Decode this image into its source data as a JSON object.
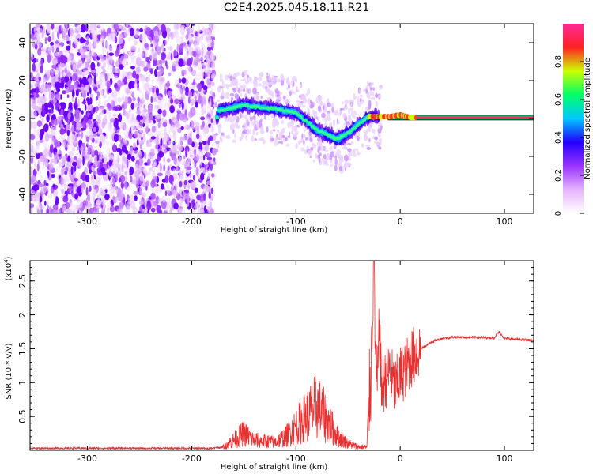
{
  "title": "C2E4.2025.045.18.11.R21",
  "chart_data": [
    {
      "type": "heatmap",
      "xlabel": "Height of straight line (km)",
      "ylabel": "Frequency (Hz)",
      "xlim": [
        -355,
        128
      ],
      "ylim": [
        -50,
        50
      ],
      "xticks": [
        -300,
        -200,
        -100,
        0,
        100
      ],
      "yticks": [
        -40,
        -20,
        0,
        20,
        40
      ],
      "colorbar": {
        "label": "Normalized spectral amplitude",
        "range": [
          0,
          1
        ],
        "ticks": [
          0.0,
          0.2,
          0.4,
          0.6,
          0.8
        ],
        "colors": [
          "#ffffff",
          "#e6b3ff",
          "#9933ff",
          "#2200ff",
          "#00c8ff",
          "#00ff66",
          "#ccff00",
          "#ff2222",
          "#ff2a99"
        ]
      },
      "features": {
        "noise_region_x": [
          -355,
          -178
        ],
        "track": [
          {
            "x": -175,
            "y": 4
          },
          {
            "x": -150,
            "y": 7
          },
          {
            "x": -120,
            "y": 5
          },
          {
            "x": -100,
            "y": 3
          },
          {
            "x": -80,
            "y": -6
          },
          {
            "x": -60,
            "y": -11
          },
          {
            "x": -48,
            "y": -7
          },
          {
            "x": -40,
            "y": -3
          },
          {
            "x": -30,
            "y": 1
          },
          {
            "x": -10,
            "y": 1
          },
          {
            "x": 0,
            "y": 2
          },
          {
            "x": 10,
            "y": 0.5
          },
          {
            "x": 128,
            "y": 0.5
          }
        ]
      }
    },
    {
      "type": "line",
      "xlabel": "Height of straight line (km)",
      "ylabel": "SNR (10 * v/v)",
      "yscale_label": "(x10",
      "yscale_exp": "4",
      "xlim": [
        -355,
        128
      ],
      "ylim": [
        0,
        2.8
      ],
      "xticks": [
        -300,
        -200,
        -100,
        0,
        100
      ],
      "yticks": [
        0.5,
        1.0,
        1.5,
        2.0,
        2.5
      ],
      "line_color": "#e83030",
      "series": [
        {
          "x": [
            -355,
            -250,
            -180,
            -170,
            -160,
            -150,
            -140,
            -120,
            -110,
            -100,
            -90,
            -80,
            -75,
            -70,
            -60,
            -50,
            -40,
            -32,
            -28,
            -25,
            -24,
            -22,
            -20,
            -18,
            -15,
            -10,
            -5,
            0,
            5,
            10,
            20,
            30,
            40,
            50,
            70,
            90,
            95,
            100,
            110,
            128
          ],
          "y": [
            0.03,
            0.03,
            0.03,
            0.05,
            0.15,
            0.25,
            0.15,
            0.12,
            0.2,
            0.35,
            0.5,
            0.65,
            0.55,
            0.45,
            0.2,
            0.1,
            0.05,
            0.05,
            1.3,
            2.8,
            1.5,
            0.9,
            1.9,
            0.9,
            1.0,
            1.2,
            0.9,
            1.1,
            1.2,
            1.35,
            1.5,
            1.6,
            1.65,
            1.67,
            1.67,
            1.66,
            1.75,
            1.65,
            1.64,
            1.62
          ]
        }
      ]
    }
  ]
}
